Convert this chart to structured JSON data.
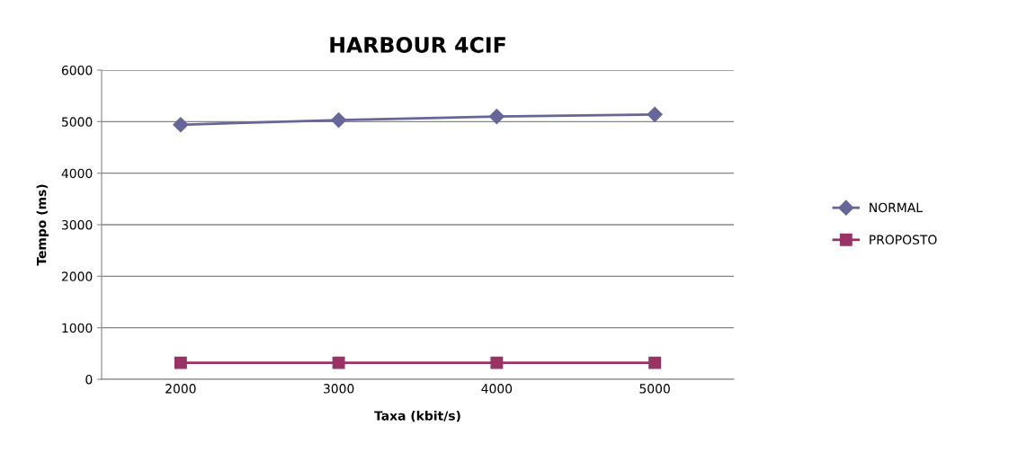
{
  "chart_data": {
    "type": "line",
    "title": "HARBOUR 4CIF",
    "xlabel": "Taxa (kbit/s)",
    "ylabel": "Tempo (ms)",
    "categories": [
      "2000",
      "3000",
      "4000",
      "5000"
    ],
    "series": [
      {
        "name": "NORMAL",
        "color": "#666699",
        "marker": "diamond",
        "values": [
          4940,
          5030,
          5100,
          5140
        ]
      },
      {
        "name": "PROPOSTO",
        "color": "#993366",
        "marker": "square",
        "values": [
          320,
          320,
          320,
          320
        ]
      }
    ],
    "ylim": [
      0,
      6000
    ],
    "yticks": [
      0,
      1000,
      2000,
      3000,
      4000,
      5000,
      6000
    ],
    "grid": "y",
    "legend": "right"
  }
}
